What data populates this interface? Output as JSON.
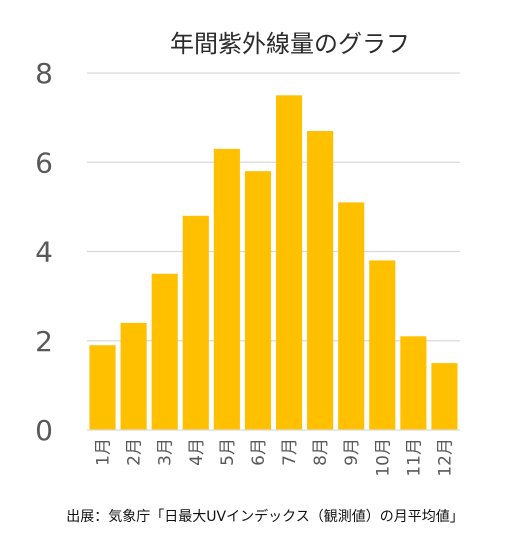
{
  "source": "出展：気象庁「日最大UVインデックス（観測値）の月平均値」",
  "chart_data": {
    "type": "bar",
    "title": "年間紫外線量のグラフ",
    "categories": [
      "1月",
      "2月",
      "3月",
      "4月",
      "5月",
      "6月",
      "7月",
      "8月",
      "9月",
      "10月",
      "11月",
      "12月"
    ],
    "values": [
      1.9,
      2.4,
      3.5,
      4.8,
      6.3,
      5.8,
      7.5,
      6.7,
      5.1,
      3.8,
      2.1,
      1.5
    ],
    "yticks": [
      0,
      2,
      4,
      6,
      8
    ],
    "ylim": [
      0,
      8
    ],
    "bar_color": "#FFC000",
    "grid_color": "#D9D9D9",
    "grid": true,
    "legend": "none"
  }
}
